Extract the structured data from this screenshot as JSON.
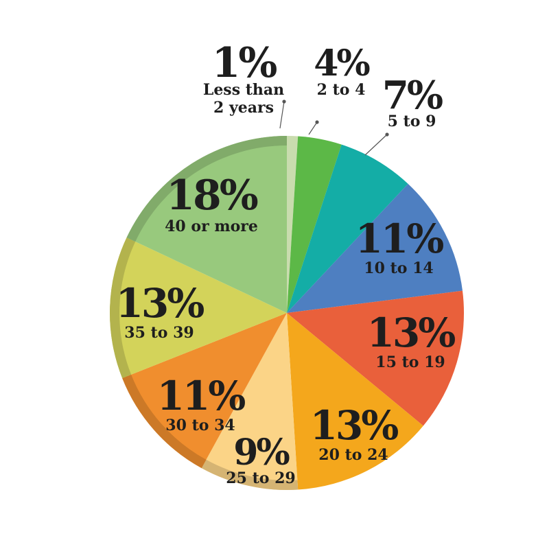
{
  "chart_data": {
    "type": "pie",
    "title": "",
    "slices": [
      {
        "category": "Less than 2 years",
        "value": 1,
        "percent_label": "1%",
        "label_lines": [
          "Less than",
          "2 years"
        ],
        "color": "#c9dcae"
      },
      {
        "category": "2 to 4",
        "value": 4,
        "percent_label": "4%",
        "label_lines": [
          "2 to 4"
        ],
        "color": "#5cb847"
      },
      {
        "category": "5 to 9",
        "value": 7,
        "percent_label": "7%",
        "label_lines": [
          "5 to 9"
        ],
        "color": "#14ada6"
      },
      {
        "category": "10 to 14",
        "value": 11,
        "percent_label": "11%",
        "label_lines": [
          "10 to 14"
        ],
        "color": "#4e7fc1"
      },
      {
        "category": "15 to 19",
        "value": 13,
        "percent_label": "13%",
        "label_lines": [
          "15 to 19"
        ],
        "color": "#e9603b"
      },
      {
        "category": "20 to 24",
        "value": 13,
        "percent_label": "13%",
        "label_lines": [
          "20 to 24"
        ],
        "color": "#f4a71c"
      },
      {
        "category": "25 to 29",
        "value": 9,
        "percent_label": "9%",
        "label_lines": [
          "25 to 29"
        ],
        "color": "#fbd487"
      },
      {
        "category": "30 to 34",
        "value": 11,
        "percent_label": "11%",
        "label_lines": [
          "30 to 34"
        ],
        "color": "#f08e2e"
      },
      {
        "category": "35 to 39",
        "value": 13,
        "percent_label": "13%",
        "label_lines": [
          "35 to 39"
        ],
        "color": "#d3d35a"
      },
      {
        "category": "40 or more",
        "value": 18,
        "percent_label": "18%",
        "label_lines": [
          "40 or more"
        ],
        "color": "#98c97d"
      }
    ],
    "start_angle_deg": 0,
    "direction": "clockwise",
    "legend": "none"
  }
}
